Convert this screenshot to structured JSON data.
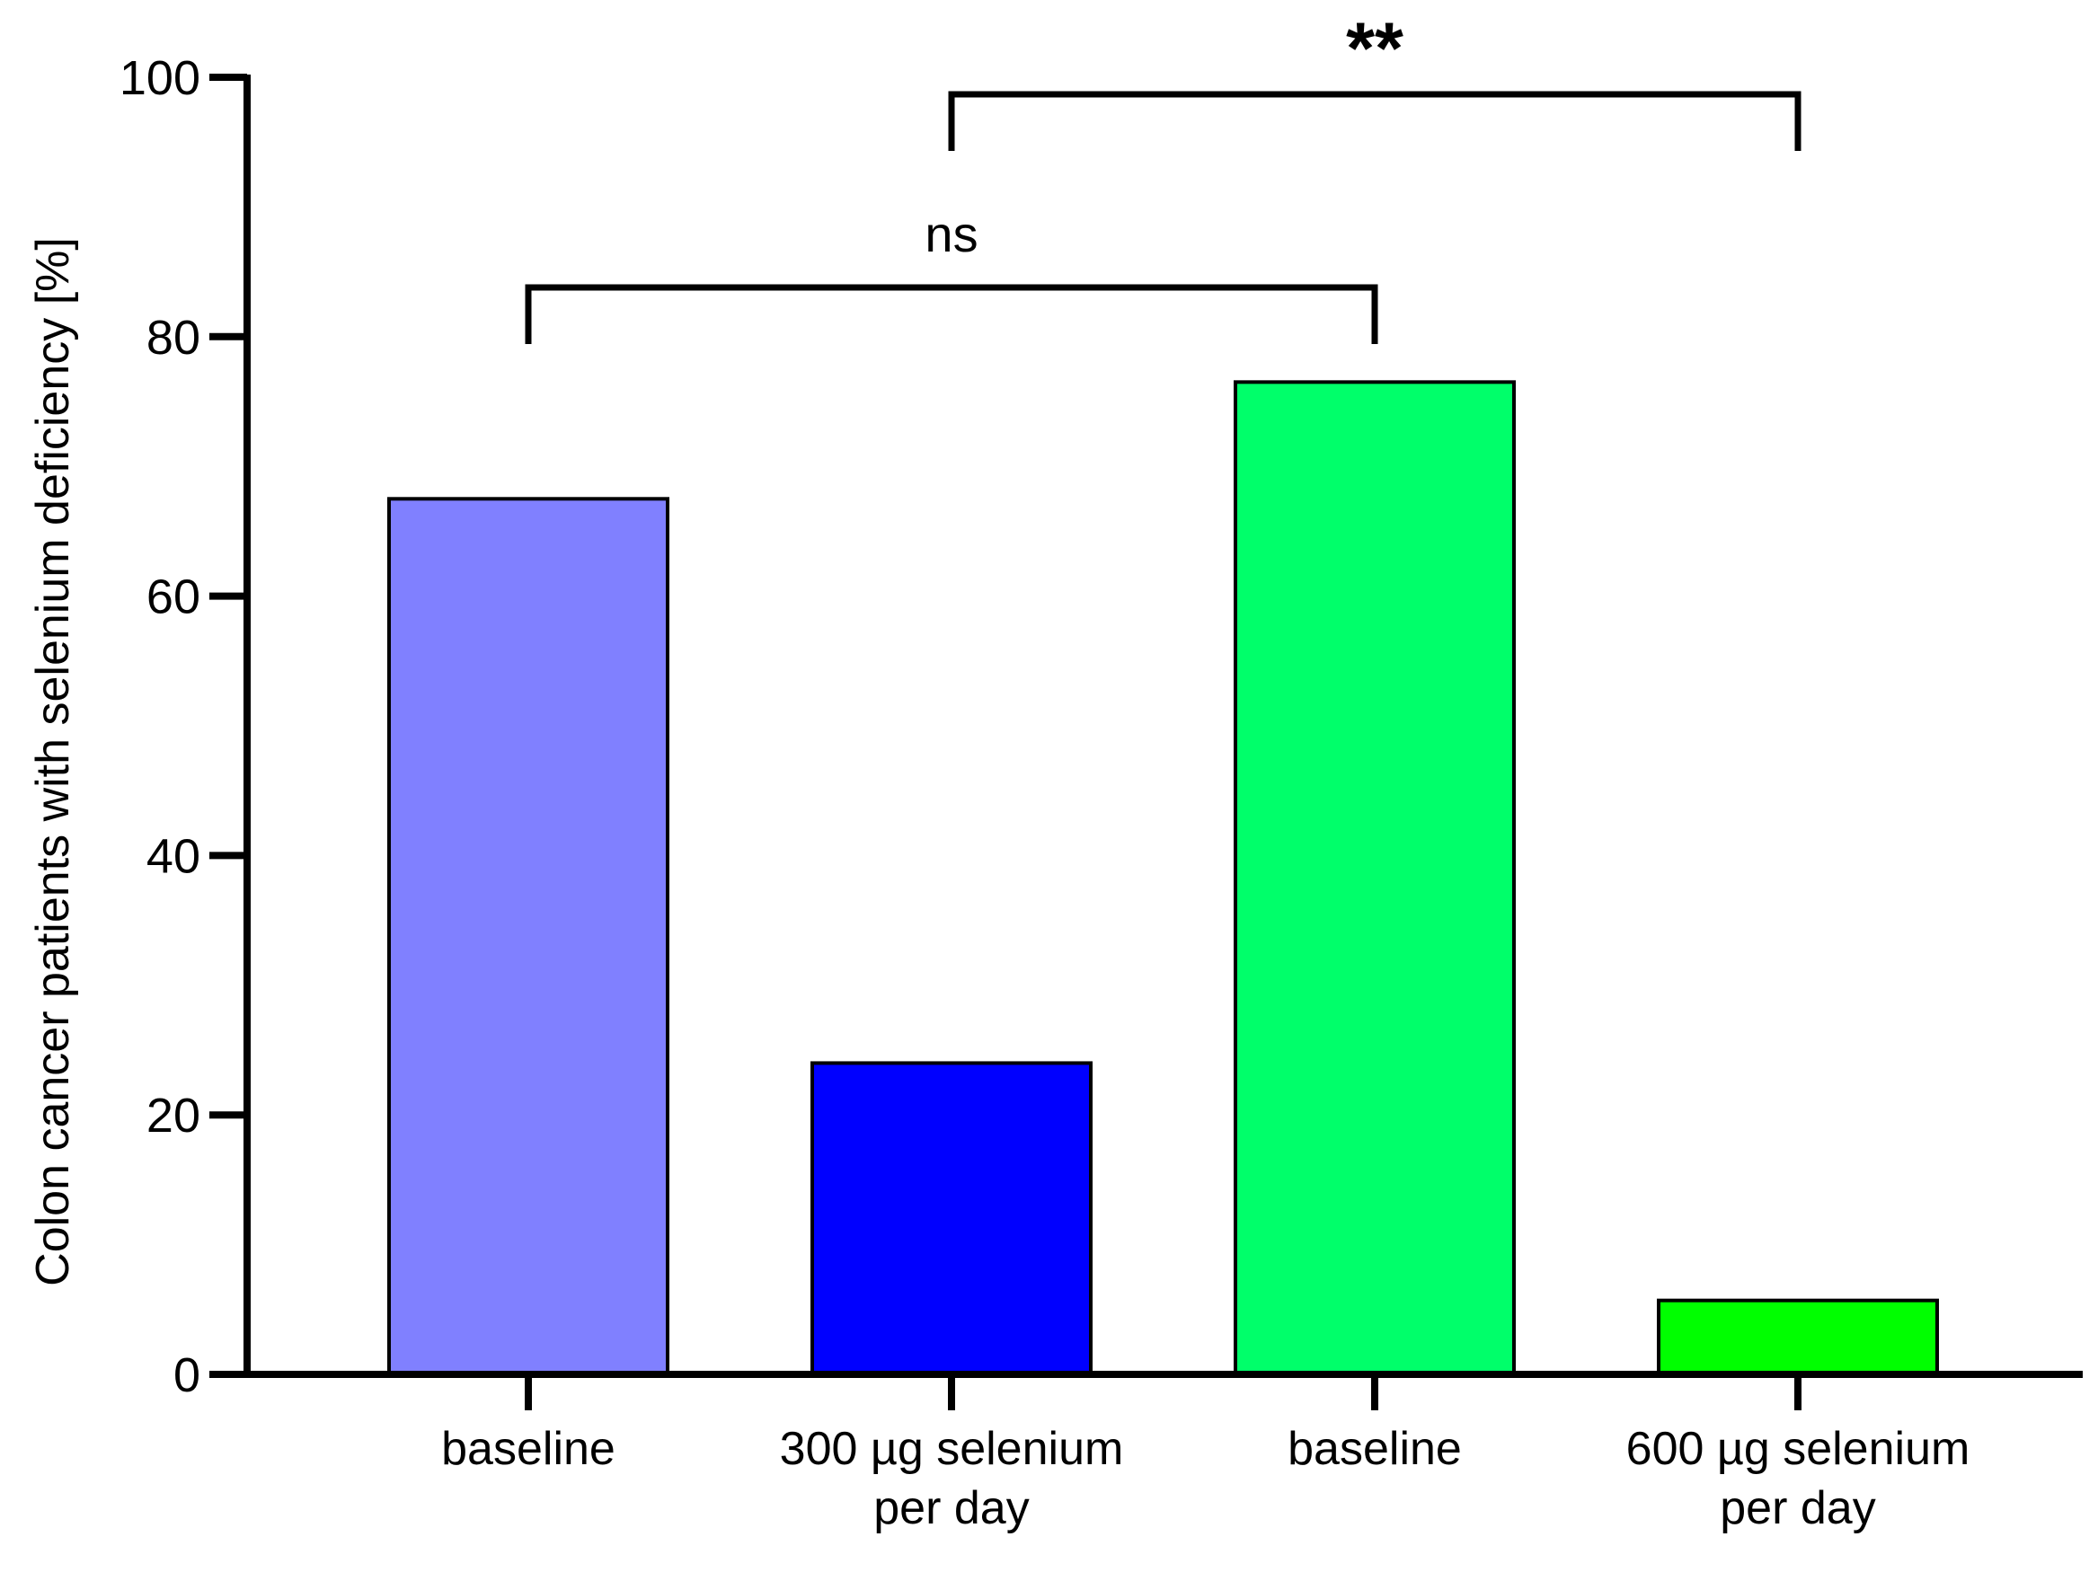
{
  "chart_data": {
    "type": "bar",
    "title": "",
    "xlabel": "",
    "ylabel": "Colon cancer patients with selenium deficiency [%]",
    "ylim": [
      0,
      100
    ],
    "yticks": [
      "0",
      "20",
      "40",
      "60",
      "80",
      "100"
    ],
    "grid": false,
    "categories": [
      [
        "baseline"
      ],
      [
        "300 µg selenium",
        "per day"
      ],
      [
        "baseline"
      ],
      [
        "600 µg selenium",
        "per day"
      ]
    ],
    "values": [
      67.5,
      24.0,
      76.5,
      5.7
    ],
    "colors": [
      "#8080ff",
      "#0000ff",
      "#00ff6a",
      "#00ff00"
    ],
    "significance": [
      {
        "from": 0,
        "to": 2,
        "label": "ns"
      },
      {
        "from": 1,
        "to": 3,
        "label": "**"
      }
    ]
  }
}
